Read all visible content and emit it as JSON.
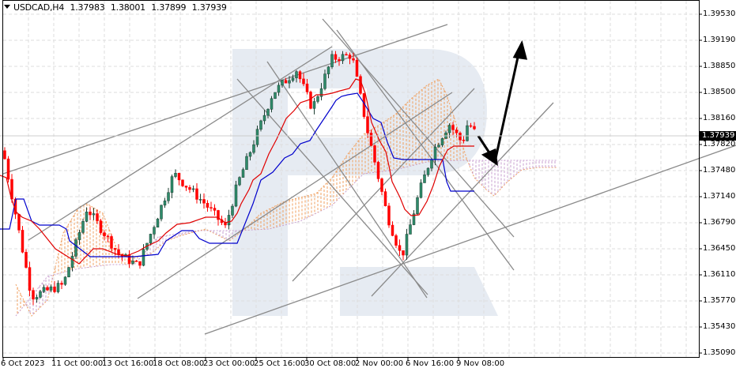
{
  "header": {
    "symbol": "USDCAD,H4",
    "open": "1.37983",
    "high": "1.38001",
    "low": "1.37899",
    "close": "1.37939",
    "menu_icon": "triangle-down-icon"
  },
  "price_axis": {
    "labels": [
      "1.39530",
      "1.39190",
      "1.38850",
      "1.38500",
      "1.38160",
      "1.37820",
      "1.37480",
      "1.37140",
      "1.36790",
      "1.36450",
      "1.36110",
      "1.35770",
      "1.35430",
      "1.35090"
    ],
    "current_price": "1.37939"
  },
  "time_axis": {
    "labels": [
      "6 Oct 2023",
      "11 Oct 00:00",
      "13 Oct 16:00",
      "18 Oct 08:00",
      "23 Oct 00:00",
      "25 Oct 16:00",
      "30 Oct 08:00",
      "2 Nov 00:00",
      "6 Nov 16:00",
      "9 Nov 08:00"
    ]
  },
  "colors": {
    "bull_candle": "#2e8b6a",
    "bear_candle": "#ff0000",
    "tenkan": "#e00000",
    "kijun": "#0000cc",
    "cloud_a": "#f0a060",
    "cloud_b": "#c8a0d0",
    "trendline": "#888888",
    "forecast_arrow": "#000000",
    "watermark": "#e6ebf2",
    "grid": "#dddddd"
  },
  "chart_data": {
    "type": "candlestick",
    "title": "USDCAD,H4",
    "xlabel": "",
    "ylabel": "",
    "ylim": [
      1.3509,
      1.3953
    ],
    "grid": true,
    "indicators": [
      "Ichimoku Kinko Hyo (Tenkan-sen red, Kijun-sen blue, Kumo cloud)"
    ],
    "categories": [
      "6 Oct 2023",
      "11 Oct 00:00",
      "13 Oct 16:00",
      "18 Oct 08:00",
      "23 Oct 00:00",
      "25 Oct 16:00",
      "30 Oct 08:00",
      "2 Nov 00:00",
      "6 Nov 16:00",
      "9 Nov 08:00"
    ],
    "ohlc_last": {
      "open": 1.37983,
      "high": 1.38001,
      "low": 1.37899,
      "close": 1.37939
    },
    "approx_swing_points": [
      {
        "label": "start 6 Oct",
        "price": 1.3775
      },
      {
        "label": "low ~12 Oct",
        "price": 1.358
      },
      {
        "label": "high ~18 Oct",
        "price": 1.3745
      },
      {
        "label": "low ~23 Oct",
        "price": 1.367
      },
      {
        "label": "high ~26 Oct",
        "price": 1.388
      },
      {
        "label": "high ~1 Nov",
        "price": 1.3905
      },
      {
        "label": "low ~7 Nov",
        "price": 1.363
      },
      {
        "label": "high ~9 Nov",
        "price": 1.381
      },
      {
        "label": "last close",
        "price": 1.37939
      }
    ],
    "forecast": {
      "pullback_target": 1.3762,
      "upside_target": 1.3925
    },
    "annotations": [
      "trend channel lines",
      "fan lines",
      "forecast arrow down then up"
    ]
  }
}
